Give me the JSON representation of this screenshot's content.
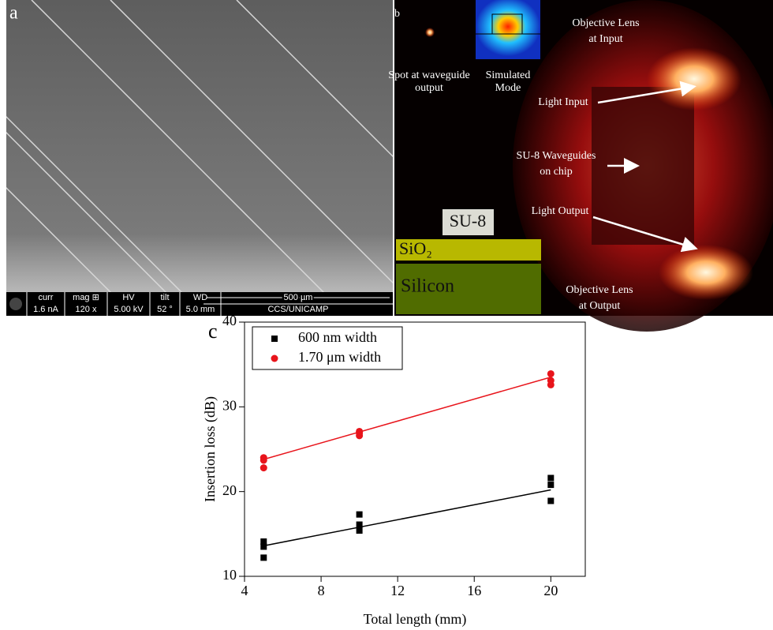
{
  "panel_a": {
    "label": "a",
    "info_bar": [
      [
        "curr",
        "1.6 nA"
      ],
      [
        "mag ⊞",
        "120 x"
      ],
      [
        "HV",
        "5.00 kV"
      ],
      [
        "tilt",
        "52 °"
      ],
      [
        "WD",
        "5.0 mm"
      ]
    ],
    "scale_bar": "500 µm",
    "credit": "CCS/UNICAMP"
  },
  "panel_b": {
    "label": "b",
    "spot": [
      "Spot at waveguide",
      "output"
    ],
    "mode": [
      "Simulated",
      "Mode"
    ],
    "lens_in": [
      "Objective Lens",
      "at Input"
    ],
    "light_in": "Light Input",
    "waveguides": [
      "SU-8 Waveguides",
      "on chip"
    ],
    "light_out": "Light Output",
    "lens_out": [
      "Objective Lens",
      "at Output"
    ],
    "layers": [
      "SU-8",
      "SiO₂",
      "Silicon"
    ]
  },
  "chart_data": {
    "type": "scatter",
    "panel_label": "c",
    "xlabel": "Total length (mm)",
    "ylabel": "Insertion loss (dB)",
    "xlim": [
      4,
      21.8
    ],
    "ylim": [
      10,
      40
    ],
    "xticks": [
      4,
      8,
      12,
      16,
      20
    ],
    "yticks": [
      10,
      20,
      30,
      40
    ],
    "legend": "upper left",
    "series": [
      {
        "name": "600 nm width",
        "color": "#000000",
        "marker": "square",
        "x": [
          5,
          5,
          5,
          10,
          10,
          10,
          20,
          20,
          20
        ],
        "values": [
          14.1,
          13.5,
          12.2,
          17.3,
          16.1,
          15.4,
          21.6,
          20.8,
          18.9
        ],
        "fit": {
          "x": [
            5,
            20
          ],
          "values": [
            13.6,
            20.2
          ]
        }
      },
      {
        "name": "1.70 μm width",
        "color": "#e8141b",
        "marker": "circle",
        "x": [
          5,
          5,
          5,
          10,
          10,
          10,
          20,
          20,
          20
        ],
        "values": [
          24.0,
          23.7,
          22.8,
          27.1,
          26.9,
          26.6,
          33.9,
          33.1,
          32.6
        ],
        "fit": {
          "x": [
            5,
            20
          ],
          "values": [
            23.8,
            33.5
          ]
        }
      }
    ]
  }
}
